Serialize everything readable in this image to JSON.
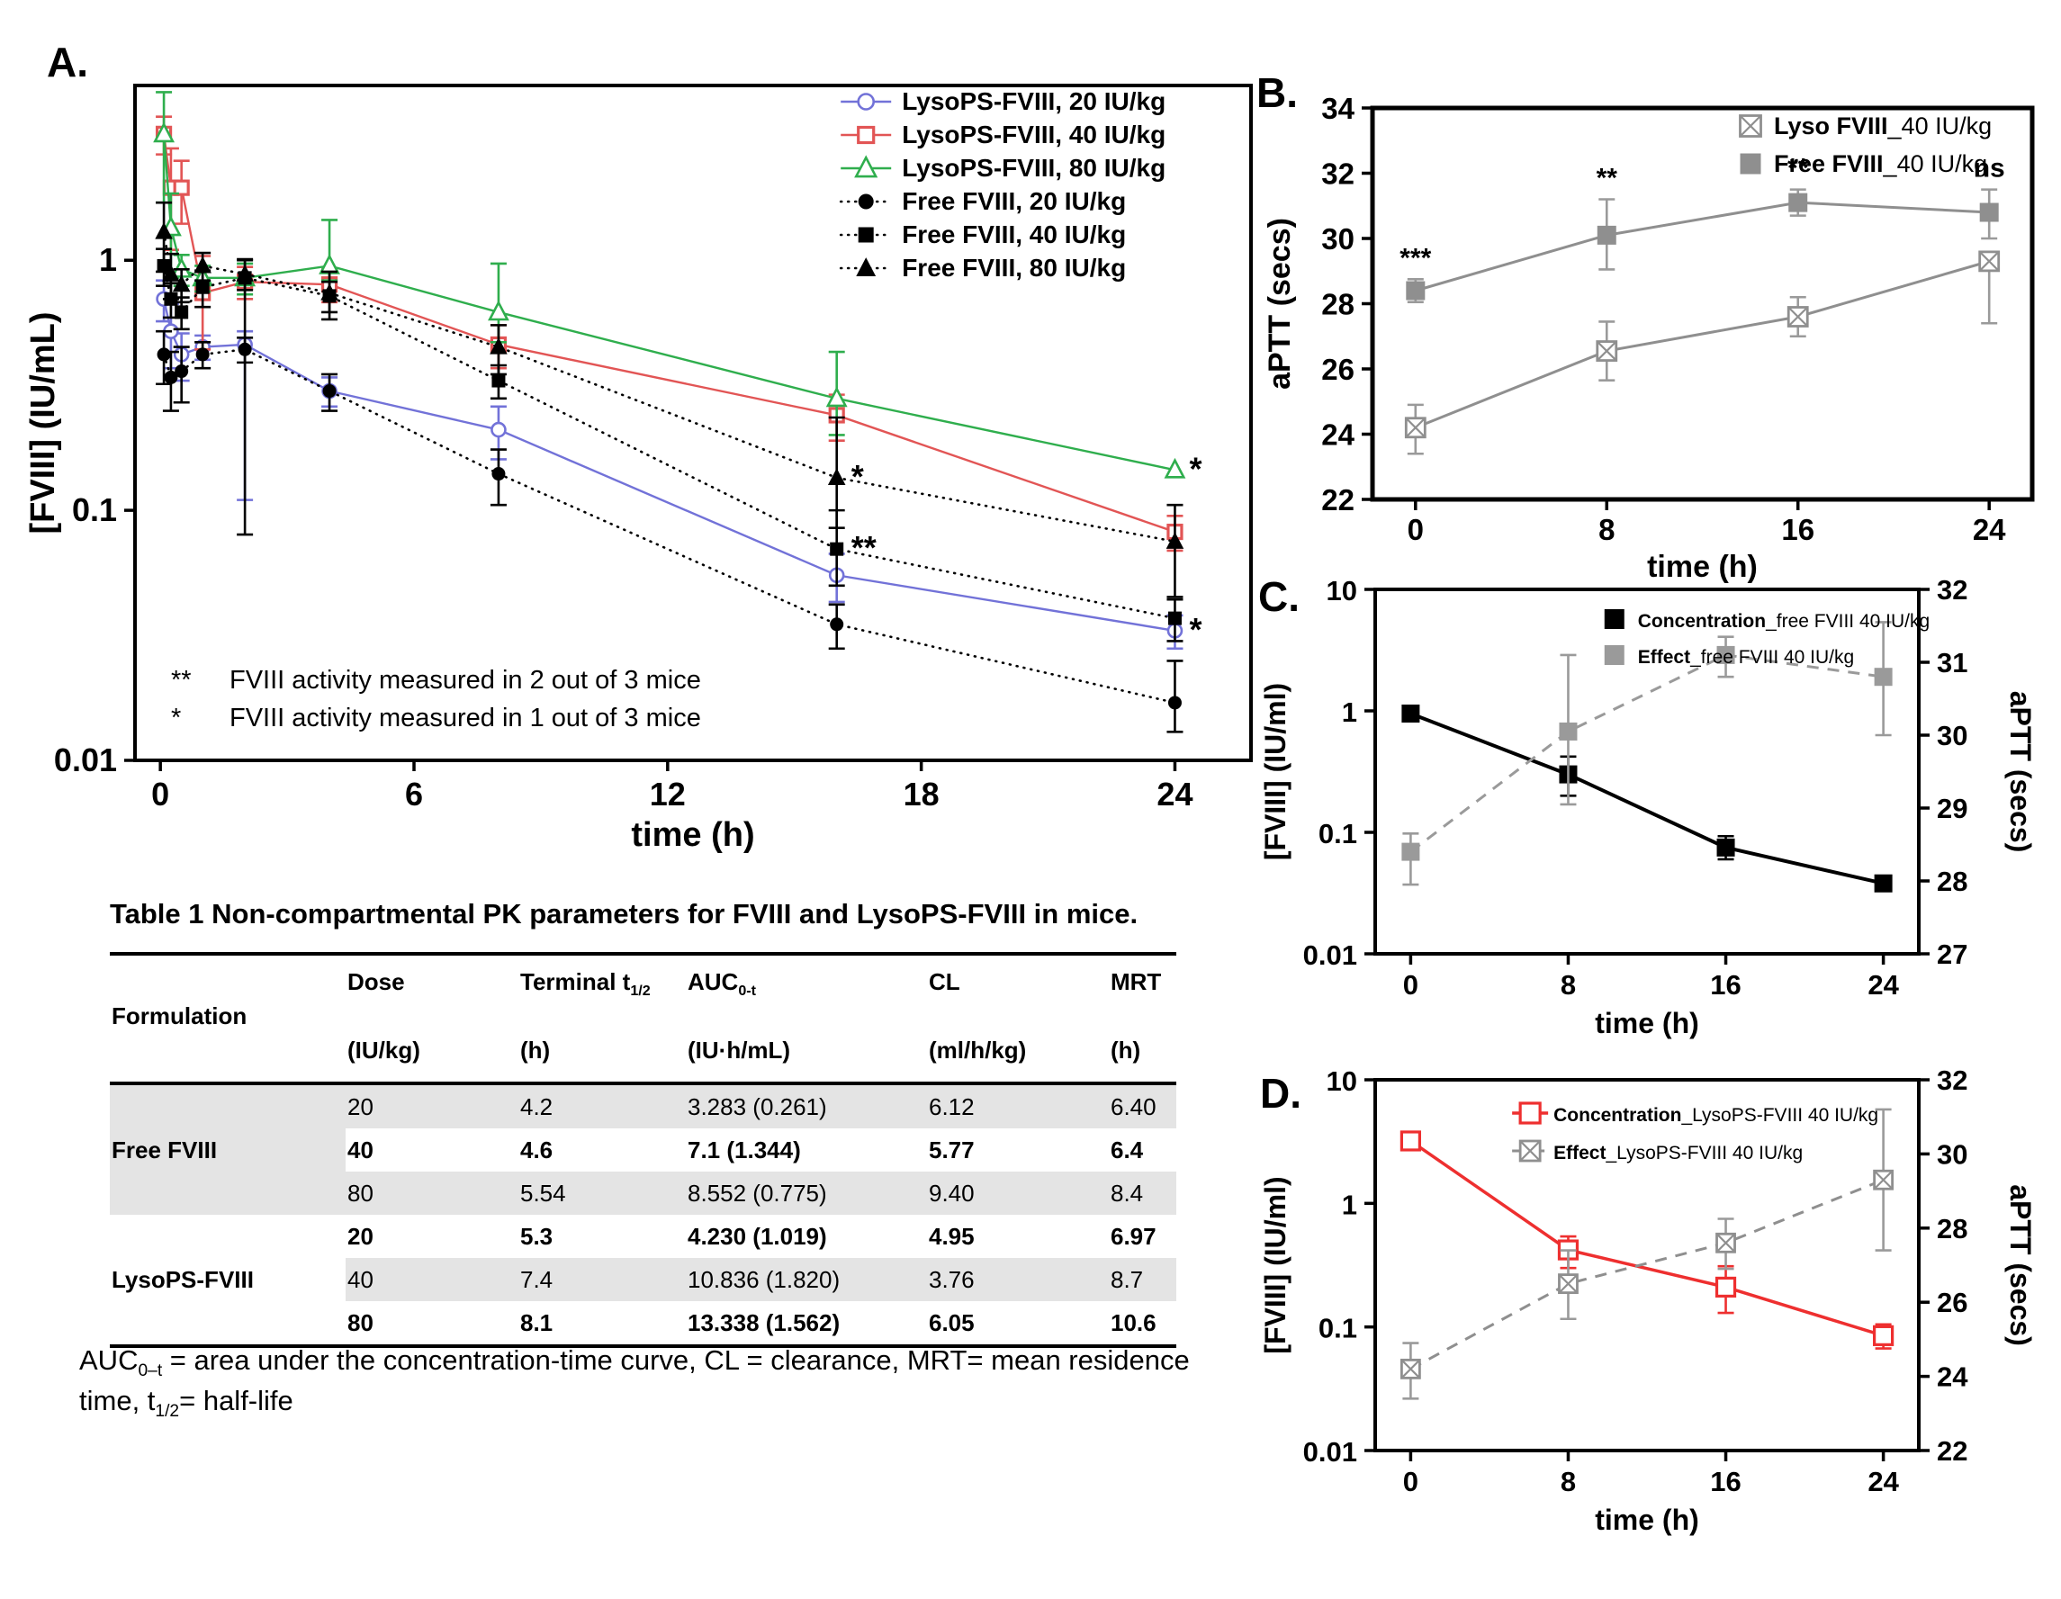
{
  "figure": {
    "description": "Pharmacokinetics and pharmacodynamics of FVIII and LysoPS-FVIII in mice"
  },
  "chart_data": [
    {
      "panel_label": "A.",
      "type": "line",
      "xlabel": "time (h)",
      "xlim": [
        -0.6,
        25.8
      ],
      "xticks": [
        0,
        6,
        12,
        18,
        24
      ],
      "left_axis": {
        "label": "[FVIII] (IU/mL)",
        "scale": "log",
        "lim": [
          0.01,
          5.0
        ],
        "ticks": [
          1,
          0.1,
          0.01
        ],
        "tick_labels": [
          "1",
          "0.1",
          "0.01"
        ]
      },
      "right_axis": null,
      "annotations": [
        {
          "symbol": "**",
          "text": "FVIII activity measured in 2 out of 3 mice"
        },
        {
          "symbol": "*",
          "text": "FVIII activity measured in 1 out of 3 mice"
        }
      ],
      "series": [
        {
          "name": "LysoPS-FVIII, 20 IU/kg",
          "label_bold": "LysoPS-FVIII, 20 IU/kg",
          "label_rest": "",
          "color": "#7272d8",
          "line": "solid",
          "line_w": 2.4,
          "marker": "circle-open",
          "marker_size": 15,
          "axis": "left",
          "x": [
            0.083,
            0.25,
            0.5,
            1,
            2,
            4,
            8,
            16,
            24
          ],
          "y": [
            0.7,
            0.52,
            0.42,
            0.45,
            0.46,
            0.3,
            0.21,
            0.055,
            0.033
          ],
          "err_up": [
            0.13,
            0.15,
            0.09,
            0.05,
            0.06,
            0.04,
            0.05,
            0.012,
            0.005
          ],
          "err_down": [
            0.13,
            0.15,
            0.09,
            0.05,
            0.35,
            0.04,
            0.05,
            0.012,
            0.005
          ],
          "point_labels": [
            "",
            "",
            "",
            "",
            "",
            "",
            "",
            "",
            "*"
          ],
          "label_pos": "right"
        },
        {
          "name": "LysoPS-FVIII, 40 IU/kg",
          "label_bold": "LysoPS-FVIII, 40 IU/kg",
          "label_rest": "",
          "color": "#e25555",
          "line": "solid",
          "line_w": 2.4,
          "marker": "square-open",
          "marker_size": 15,
          "axis": "left",
          "x": [
            0.083,
            0.25,
            0.5,
            1,
            2,
            4,
            8,
            16,
            24
          ],
          "y": [
            3.2,
            1.95,
            1.95,
            0.74,
            0.82,
            0.8,
            0.46,
            0.24,
            0.082
          ],
          "err_up": [
            0.55,
            0.85,
            0.55,
            0.3,
            0.12,
            0.12,
            0.09,
            0.05,
            0.013
          ],
          "err_down": [
            0.55,
            0.85,
            0.55,
            0.3,
            0.12,
            0.12,
            0.09,
            0.05,
            0.013
          ],
          "point_labels": [
            "",
            "",
            "",
            "",
            "",
            "",
            "",
            "",
            ""
          ],
          "label_pos": "right"
        },
        {
          "name": "LysoPS-FVIII, 80 IU/kg",
          "label_bold": "LysoPS-FVIII, 80 IU/kg",
          "label_rest": "",
          "color": "#2fae4d",
          "line": "solid",
          "line_w": 2.4,
          "marker": "triangle-open",
          "marker_size": 17,
          "axis": "left",
          "x": [
            0.083,
            0.25,
            0.5,
            1,
            2,
            4,
            8,
            16,
            24
          ],
          "y": [
            3.2,
            1.35,
            0.92,
            0.85,
            0.85,
            0.95,
            0.62,
            0.28,
            0.145
          ],
          "err_up": [
            1.5,
            0.5,
            0.13,
            0.1,
            0.12,
            0.5,
            0.35,
            0.15,
            0
          ],
          "err_down": [
            1.5,
            0.5,
            0.13,
            0.1,
            0.12,
            0.12,
            0.15,
            0.08,
            0
          ],
          "point_labels": [
            "",
            "",
            "",
            "",
            "",
            "",
            "",
            "",
            "*"
          ],
          "label_pos": "right"
        },
        {
          "name": "Free FVIII, 20 IU/kg",
          "label_bold": "Free FVIII, 20 IU/kg",
          "label_rest": "",
          "color": "#000000",
          "line": "dotted",
          "line_w": 2.6,
          "marker": "circle-filled",
          "marker_size": 15,
          "axis": "left",
          "x": [
            0.083,
            0.25,
            0.5,
            1,
            2,
            4,
            8,
            16,
            24
          ],
          "y": [
            0.42,
            0.34,
            0.36,
            0.42,
            0.44,
            0.3,
            0.14,
            0.035,
            0.017
          ],
          "err_up": [
            0.1,
            0.09,
            0.09,
            0.05,
            0.05,
            0.05,
            0.035,
            0.007,
            0.008
          ],
          "err_down": [
            0.1,
            0.09,
            0.09,
            0.05,
            0.05,
            0.05,
            0.035,
            0.007,
            0.004
          ],
          "point_labels": [
            "",
            "",
            "",
            "",
            "",
            "",
            "",
            "",
            ""
          ],
          "label_pos": "right"
        },
        {
          "name": "Free FVIII, 40 IU/kg",
          "label_bold": "Free FVIII, 40 IU/kg",
          "label_rest": "",
          "color": "#000000",
          "line": "dotted",
          "line_w": 2.6,
          "marker": "square-filled",
          "marker_size": 15,
          "axis": "left",
          "x": [
            0.083,
            0.25,
            0.5,
            1,
            2,
            4,
            8,
            16,
            24
          ],
          "y": [
            0.95,
            0.7,
            0.62,
            0.78,
            0.85,
            0.72,
            0.33,
            0.07,
            0.037
          ],
          "err_up": [
            0.16,
            0.11,
            0.09,
            0.13,
            0.16,
            0.1,
            0.05,
            0.03,
            0.007
          ],
          "err_down": [
            0.16,
            0.11,
            0.09,
            0.13,
            0.77,
            0.1,
            0.05,
            0.02,
            0.007
          ],
          "point_labels": [
            "",
            "",
            "",
            "",
            "",
            "",
            "",
            "**",
            ""
          ],
          "label_pos": "right"
        },
        {
          "name": "Free FVIII, 80 IU/kg",
          "label_bold": "Free FVIII, 80 IU/kg",
          "label_rest": "",
          "color": "#000000",
          "line": "dotted",
          "line_w": 2.6,
          "marker": "triangle-filled",
          "marker_size": 17,
          "axis": "left",
          "x": [
            0.083,
            0.25,
            0.5,
            1,
            2,
            4,
            8,
            16,
            24
          ],
          "y": [
            1.3,
            0.88,
            0.8,
            0.95,
            0.88,
            0.74,
            0.45,
            0.135,
            0.075
          ],
          "err_up": [
            0.4,
            0.18,
            0.12,
            0.12,
            0.12,
            0.16,
            0.1,
            0.1,
            0.03
          ],
          "err_down": [
            0.4,
            0.18,
            0.12,
            0.12,
            0.12,
            0.16,
            0.1,
            0.05,
            0.03
          ],
          "point_labels": [
            "",
            "",
            "",
            "",
            "",
            "",
            "",
            "*",
            ""
          ],
          "label_pos": "right"
        }
      ]
    },
    {
      "panel_label": "B.",
      "type": "line",
      "xlabel": "time (h)",
      "xlim": [
        -1.8,
        25.8
      ],
      "xticks": [
        0,
        8,
        16,
        24
      ],
      "left_axis": {
        "label": "aPTT (secs)",
        "scale": "linear",
        "lim": [
          22,
          34
        ],
        "ticks": [
          22,
          24,
          26,
          28,
          30,
          32,
          34
        ],
        "tick_labels": [
          "22",
          "24",
          "26",
          "28",
          "30",
          "32",
          "34"
        ]
      },
      "right_axis": null,
      "annotations": null,
      "series": [
        {
          "name": "Lyso FVIII_40 IU/kg",
          "label_bold": "Lyso FVIII",
          "label_rest": "_40 IU/kg",
          "color": "#8f8f8f",
          "err_color": "#9a9a9a",
          "line": "solid",
          "line_w": 3,
          "marker": "square-crossed",
          "marker_size": 21,
          "axis": "left",
          "x": [
            0,
            8,
            16,
            24
          ],
          "y": [
            24.2,
            26.55,
            27.6,
            29.3
          ],
          "err_up": [
            0.7,
            0.9,
            0.6,
            0.2
          ],
          "err_down": [
            0.8,
            0.9,
            0.6,
            1.9
          ],
          "point_labels": [
            "",
            "",
            "",
            ""
          ],
          "label_pos": "above"
        },
        {
          "name": "Free FVIII_40 IU/kg",
          "label_bold": "Free FVIII",
          "label_rest": "_40 IU/kg",
          "color": "#8f8f8f",
          "err_color": "#9a9a9a",
          "line": "solid",
          "line_w": 3,
          "marker": "square-filled",
          "marker_size": 21,
          "axis": "left",
          "x": [
            0,
            8,
            16,
            24
          ],
          "y": [
            28.4,
            30.1,
            31.1,
            30.8
          ],
          "err_up": [
            0.35,
            1.1,
            0.4,
            0.7
          ],
          "err_down": [
            0.35,
            1.05,
            0.4,
            0.8
          ],
          "point_labels": [
            "***",
            "**",
            "**",
            "ns"
          ],
          "label_pos": "above"
        }
      ]
    },
    {
      "panel_label": "C.",
      "type": "line",
      "xlabel": "time (h)",
      "xlim": [
        -1.8,
        25.8
      ],
      "xticks": [
        0,
        8,
        16,
        24
      ],
      "left_axis": {
        "label": "[FVIII] (IU/ml)",
        "scale": "log",
        "lim": [
          0.01,
          10
        ],
        "ticks": [
          10,
          1,
          0.1,
          0.01
        ],
        "tick_labels": [
          "10",
          "1",
          "0.1",
          "0.01"
        ]
      },
      "right_axis": {
        "label": "aPTT (secs)",
        "scale": "linear",
        "lim": [
          27,
          32
        ],
        "ticks": [
          27,
          28,
          29,
          30,
          31,
          32
        ],
        "tick_labels": [
          "27",
          "28",
          "29",
          "30",
          "31",
          "32"
        ]
      },
      "annotations": null,
      "series": [
        {
          "name": "Concentration_free FVIII 40 IU/kg",
          "label_bold": "Concentration",
          "label_rest": "_free FVIII 40 IU/kg",
          "color": "#000000",
          "line": "solid",
          "line_w": 4,
          "marker": "square-filled",
          "marker_size": 20,
          "axis": "left",
          "x": [
            0,
            8,
            16,
            24
          ],
          "y": [
            0.95,
            0.3,
            0.075,
            0.038
          ],
          "err_up": [
            0.08,
            0.12,
            0.018,
            0.005
          ],
          "err_down": [
            0.08,
            0.1,
            0.015,
            0.005
          ],
          "point_labels": [
            "",
            "",
            "",
            ""
          ],
          "label_pos": "above"
        },
        {
          "name": "Effect_free FVIII 40 IU/kg",
          "label_bold": "Effect",
          "label_rest": "_free FVIII 40 IU/kg",
          "color": "#9a9a9a",
          "err_color": "#9a9a9a",
          "line": "dashed",
          "line_w": 3,
          "marker": "square-filled",
          "marker_size": 20,
          "axis": "right",
          "x": [
            0,
            8,
            16,
            24
          ],
          "y": [
            28.4,
            30.05,
            31.1,
            30.8
          ],
          "err_up": [
            0.25,
            1.05,
            0.25,
            0.75
          ],
          "err_down": [
            0.45,
            1.0,
            0.3,
            0.8
          ],
          "point_labels": [
            "",
            "",
            "",
            ""
          ],
          "label_pos": "above"
        }
      ]
    },
    {
      "panel_label": "D.",
      "type": "line",
      "xlabel": "time (h)",
      "xlim": [
        -1.8,
        25.8
      ],
      "xticks": [
        0,
        8,
        16,
        24
      ],
      "left_axis": {
        "label": "[FVIII] (IU/ml)",
        "scale": "log",
        "lim": [
          0.01,
          10
        ],
        "ticks": [
          10,
          1,
          0.1,
          0.01
        ],
        "tick_labels": [
          "10",
          "1",
          "0.1",
          "0.01"
        ]
      },
      "right_axis": {
        "label": "aPTT (secs)",
        "scale": "linear",
        "lim": [
          22,
          32
        ],
        "ticks": [
          22,
          24,
          26,
          28,
          30,
          32
        ],
        "tick_labels": [
          "22",
          "24",
          "26",
          "28",
          "30",
          "32"
        ]
      },
      "annotations": null,
      "series": [
        {
          "name": "Concentration_LysoPS-FVIII 40 IU/kg",
          "label_bold": "Concentration",
          "label_rest": "_LysoPS-FVIII 40 IU/kg",
          "color": "#ee2f2f",
          "line": "solid",
          "line_w": 3.5,
          "marker": "square-open",
          "marker_size": 20,
          "axis": "left",
          "x": [
            0,
            8,
            16,
            24
          ],
          "y": [
            3.2,
            0.42,
            0.21,
            0.085
          ],
          "err_up": [
            0.5,
            0.12,
            0.1,
            0.02
          ],
          "err_down": [
            0.5,
            0.12,
            0.08,
            0.018
          ],
          "point_labels": [
            "",
            "",
            "",
            ""
          ],
          "label_pos": "above"
        },
        {
          "name": "Effect_LysoPS-FVIII 40 IU/kg",
          "label_bold": "Effect",
          "label_rest": "_LysoPS-FVIII 40 IU/kg",
          "color": "#8f8f8f",
          "err_color": "#9a9a9a",
          "line": "dashed",
          "line_w": 3,
          "marker": "square-crossed",
          "marker_size": 20,
          "axis": "right",
          "x": [
            0,
            8,
            16,
            24
          ],
          "y": [
            24.2,
            26.5,
            27.6,
            29.3
          ],
          "err_up": [
            0.7,
            0.9,
            0.65,
            1.9
          ],
          "err_down": [
            0.8,
            0.95,
            0.7,
            1.9
          ],
          "point_labels": [
            "",
            "",
            "",
            ""
          ],
          "label_pos": "above"
        }
      ]
    }
  ],
  "table": {
    "title": "Table 1 Non-compartmental PK parameters for FVIII and LysoPS-FVIII in mice.",
    "headers": [
      {
        "t": "Formulation",
        "s": "",
        "u": ""
      },
      {
        "t": "Dose",
        "s": "",
        "u": "(IU/kg)"
      },
      {
        "t": "Terminal t",
        "s": "1/2",
        "u": "(h)"
      },
      {
        "t": "AUC",
        "s": "0-t",
        "u": "(IU·h/mL)"
      },
      {
        "t": "CL",
        "s": "",
        "u": "(ml/h/kg)"
      },
      {
        "t": "MRT",
        "s": "",
        "u": "(h)"
      }
    ],
    "groups": [
      {
        "name": "Free FVIII",
        "shaded": true,
        "rows": [
          {
            "dose": "20",
            "t_half": "4.2",
            "auc": "3.283 (0.261)",
            "cl": "6.12",
            "mrt": "6.40",
            "shaded": true,
            "bold": false
          },
          {
            "dose": "40",
            "t_half": "4.6",
            "auc": "7.1 (1.344)",
            "cl": "5.77",
            "mrt": "6.4",
            "shaded": false,
            "bold": true
          },
          {
            "dose": "80",
            "t_half": "5.54",
            "auc": "8.552 (0.775)",
            "cl": "9.40",
            "mrt": "8.4",
            "shaded": true,
            "bold": false
          }
        ]
      },
      {
        "name": "LysoPS-FVIII",
        "shaded": false,
        "rows": [
          {
            "dose": "20",
            "t_half": "5.3",
            "auc": "4.230 (1.019)",
            "cl": "4.95",
            "mrt": "6.97",
            "shaded": false,
            "bold": true
          },
          {
            "dose": "40",
            "t_half": "7.4",
            "auc": "10.836 (1.820)",
            "cl": "3.76",
            "mrt": "8.7",
            "shaded": true,
            "bold": false
          },
          {
            "dose": "80",
            "t_half": "8.1",
            "auc": "13.338 (1.562)",
            "cl": "6.05",
            "mrt": "10.6",
            "shaded": false,
            "bold": true
          }
        ]
      }
    ],
    "footnote_parts": [
      {
        "t": "AUC"
      },
      {
        "s": "0–t"
      },
      {
        "t": " = area under the concentration-time curve, CL = clearance, MRT= mean residence time, t"
      },
      {
        "s": "1/2"
      },
      {
        "t": "= half-life"
      }
    ]
  }
}
